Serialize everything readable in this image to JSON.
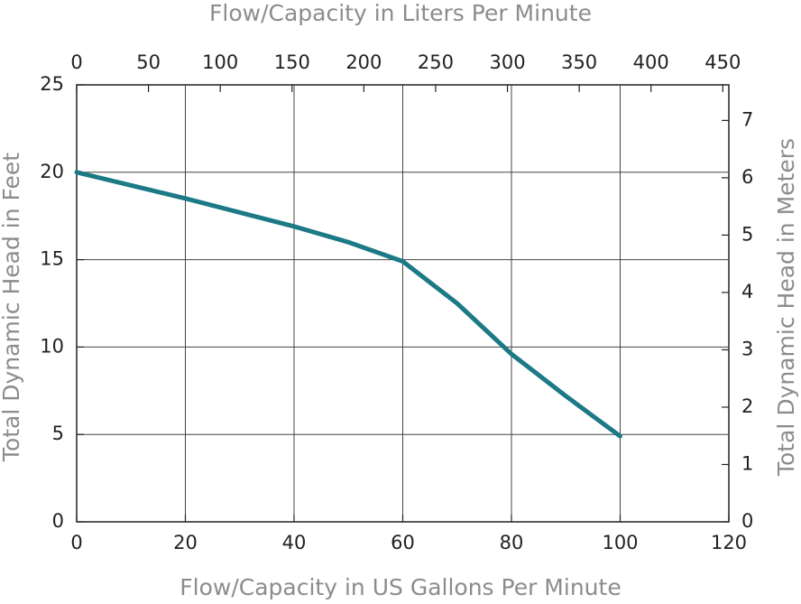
{
  "chart_data": {
    "type": "line",
    "xlabel": "Flow/Capacity in US Gallons Per Minute",
    "x2label": "Flow/Capacity in Liters Per Minute",
    "ylabel": "Total Dynamic Head in Feet",
    "y2label": "Total Dynamic Head in Meters",
    "x": [
      0,
      20,
      40,
      50,
      60,
      70,
      80,
      90,
      100
    ],
    "series": [
      {
        "color": "#1b7a86",
        "values": [
          20,
          18.5,
          16.9,
          16.0,
          14.9,
          12.5,
          9.6,
          7.2,
          4.9
        ]
      }
    ],
    "xlim": [
      0,
      120
    ],
    "xticks": [
      0,
      20,
      40,
      60,
      80,
      100,
      120
    ],
    "x2lim": [
      0,
      454.2
    ],
    "x2ticks": [
      0,
      50,
      100,
      150,
      200,
      250,
      300,
      350,
      400,
      450
    ],
    "ylim": [
      0,
      25
    ],
    "yticks": [
      0,
      5,
      10,
      15,
      20,
      25
    ],
    "y2lim": [
      0,
      7.62
    ],
    "y2ticks": [
      0,
      1,
      2,
      3,
      4,
      5,
      6,
      7
    ],
    "grid": true
  }
}
